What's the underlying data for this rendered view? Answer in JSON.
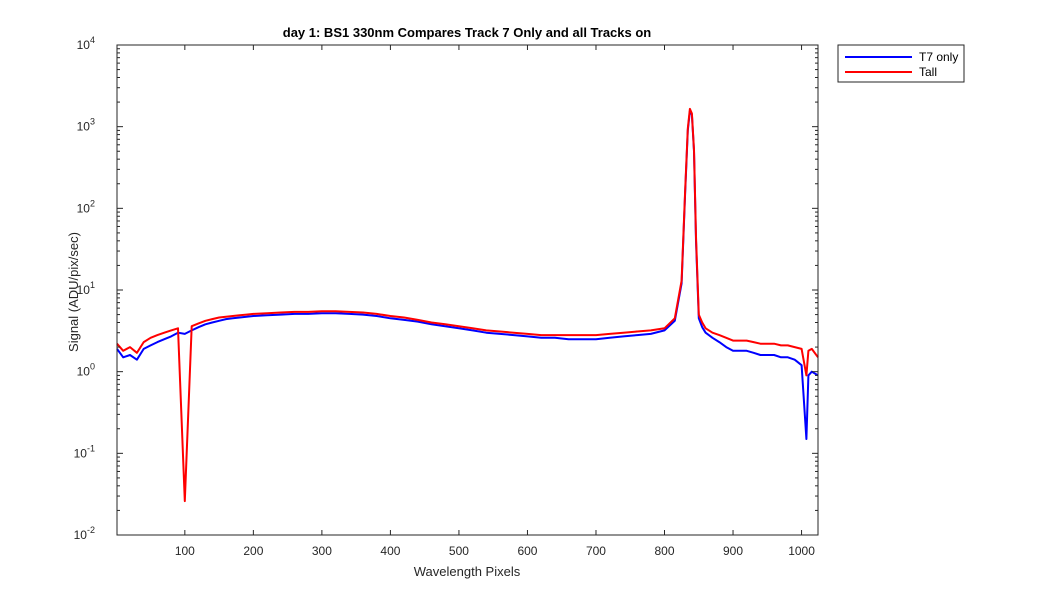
{
  "chart_data": {
    "type": "line",
    "title": "day 1: BS1  330nm  Compares Track 7 Only and all Tracks on",
    "xlabel": "Wavelength Pixels",
    "ylabel": "Signal (ADU/pix/sec)",
    "xlim": [
      1,
      1024
    ],
    "ylim": [
      0.01,
      10000
    ],
    "yscale": "log",
    "grid": false,
    "legend_position": "outside-top-right",
    "x_ticks": [
      100,
      200,
      300,
      400,
      500,
      600,
      700,
      800,
      900,
      1000
    ],
    "y_ticks": [
      {
        "value": 0.01,
        "base": "10",
        "exp": "-2"
      },
      {
        "value": 0.1,
        "base": "10",
        "exp": "-1"
      },
      {
        "value": 1,
        "base": "10",
        "exp": "0"
      },
      {
        "value": 10,
        "base": "10",
        "exp": "1"
      },
      {
        "value": 100,
        "base": "10",
        "exp": "2"
      },
      {
        "value": 1000,
        "base": "10",
        "exp": "3"
      },
      {
        "value": 10000,
        "base": "10",
        "exp": "4"
      }
    ],
    "x": [
      1,
      10,
      20,
      30,
      40,
      50,
      60,
      70,
      80,
      90,
      100,
      110,
      120,
      130,
      140,
      150,
      160,
      170,
      180,
      190,
      200,
      220,
      240,
      260,
      280,
      300,
      320,
      340,
      360,
      380,
      400,
      420,
      440,
      460,
      480,
      500,
      520,
      540,
      560,
      580,
      600,
      620,
      640,
      660,
      680,
      700,
      720,
      740,
      760,
      780,
      800,
      815,
      825,
      830,
      834,
      837,
      840,
      843,
      846,
      850,
      855,
      860,
      870,
      880,
      890,
      900,
      910,
      920,
      930,
      940,
      950,
      960,
      970,
      980,
      990,
      1000,
      1007,
      1010,
      1015,
      1024
    ],
    "series": [
      {
        "name": "T7 only",
        "color": "#0000ff",
        "values": [
          1.9,
          1.5,
          1.6,
          1.4,
          1.9,
          2.1,
          2.3,
          2.5,
          2.7,
          3.0,
          2.9,
          3.2,
          3.5,
          3.8,
          4.0,
          4.2,
          4.4,
          4.5,
          4.6,
          4.7,
          4.8,
          4.9,
          5.0,
          5.1,
          5.1,
          5.2,
          5.2,
          5.1,
          5.0,
          4.8,
          4.5,
          4.3,
          4.1,
          3.8,
          3.6,
          3.4,
          3.2,
          3.0,
          2.9,
          2.8,
          2.7,
          2.6,
          2.6,
          2.5,
          2.5,
          2.5,
          2.6,
          2.7,
          2.8,
          2.9,
          3.2,
          4.2,
          12.0,
          150.0,
          900.0,
          1550.0,
          1400.0,
          500.0,
          40.0,
          4.5,
          3.5,
          3.0,
          2.6,
          2.3,
          2.0,
          1.8,
          1.8,
          1.8,
          1.7,
          1.6,
          1.6,
          1.6,
          1.5,
          1.5,
          1.4,
          1.2,
          0.15,
          0.9,
          1.0,
          0.9
        ]
      },
      {
        "name": "Tall",
        "color": "#ff0000",
        "values": [
          2.2,
          1.8,
          2.0,
          1.7,
          2.3,
          2.6,
          2.8,
          3.0,
          3.2,
          3.4,
          0.026,
          3.6,
          3.9,
          4.2,
          4.4,
          4.6,
          4.7,
          4.8,
          4.9,
          5.0,
          5.1,
          5.2,
          5.3,
          5.4,
          5.4,
          5.5,
          5.5,
          5.4,
          5.3,
          5.1,
          4.8,
          4.6,
          4.3,
          4.0,
          3.8,
          3.6,
          3.4,
          3.2,
          3.1,
          3.0,
          2.9,
          2.8,
          2.8,
          2.8,
          2.8,
          2.8,
          2.9,
          3.0,
          3.1,
          3.2,
          3.4,
          4.5,
          13.0,
          160.0,
          950.0,
          1650.0,
          1450.0,
          520.0,
          45.0,
          5.0,
          4.0,
          3.4,
          3.0,
          2.8,
          2.6,
          2.4,
          2.4,
          2.4,
          2.3,
          2.2,
          2.2,
          2.2,
          2.1,
          2.1,
          2.0,
          1.9,
          0.9,
          1.8,
          1.9,
          1.5
        ]
      }
    ],
    "notes_shape": "Both series are noisy, roughly flat around 1-7 ADU/pix/sec with a sharp emission peak near pixel 838; Tall dips to about 0.026 near pixel 100."
  }
}
